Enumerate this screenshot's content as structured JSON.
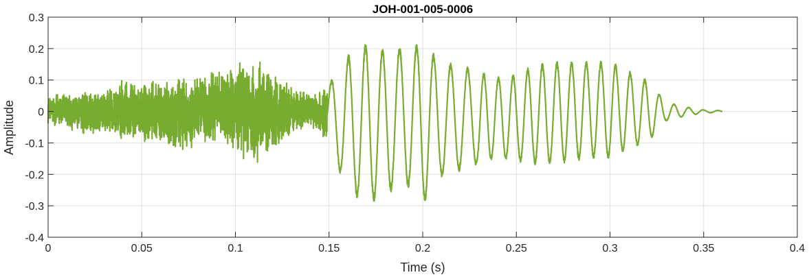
{
  "chart_data": {
    "type": "line",
    "title": "JOH-001-005-0006",
    "xlabel": "Time (s)",
    "ylabel": "Amplitude",
    "xlim": [
      0,
      0.4
    ],
    "ylim": [
      -0.4,
      0.3
    ],
    "grid": true,
    "color": "#77AC30",
    "x_ticks": [
      0,
      0.05,
      0.1,
      0.15,
      0.2,
      0.25,
      0.3,
      0.35,
      0.4
    ],
    "x_tick_labels": [
      "0",
      "0.05",
      "0.1",
      "0.15",
      "0.2",
      "0.25",
      "0.3",
      "0.35",
      "0.4"
    ],
    "y_ticks": [
      -0.4,
      -0.3,
      -0.2,
      -0.1,
      0,
      0.1,
      0.2,
      0.3
    ],
    "y_tick_labels": [
      "-0.4",
      "-0.3",
      "-0.2",
      "-0.1",
      "0",
      "0.1",
      "0.2",
      "0.3"
    ],
    "series": [
      {
        "x": [
          0,
          0.01,
          0.02,
          0.03,
          0.04,
          0.05,
          0.06,
          0.07,
          0.08,
          0.09,
          0.1,
          0.11,
          0.12,
          0.13,
          0.14,
          0.15,
          0.16,
          0.17,
          0.18,
          0.19,
          0.2,
          0.21,
          0.22,
          0.23,
          0.24,
          0.25,
          0.26,
          0.27,
          0.28,
          0.29,
          0.3,
          0.31,
          0.32,
          0.33,
          0.34,
          0.35,
          0.36
        ],
        "upper": [
          0.05,
          0.06,
          0.07,
          0.07,
          0.1,
          0.09,
          0.11,
          0.12,
          0.12,
          0.14,
          0.16,
          0.18,
          0.14,
          0.08,
          0.06,
          0.09,
          0.18,
          0.22,
          0.2,
          0.21,
          0.22,
          0.16,
          0.15,
          0.13,
          0.11,
          0.12,
          0.15,
          0.16,
          0.16,
          0.16,
          0.16,
          0.13,
          0.1,
          0.03,
          0.015,
          0.005,
          0.003
        ],
        "lower": [
          -0.04,
          -0.06,
          -0.08,
          -0.07,
          -0.09,
          -0.1,
          -0.12,
          -0.13,
          -0.12,
          -0.1,
          -0.14,
          -0.18,
          -0.13,
          -0.07,
          -0.05,
          -0.12,
          -0.25,
          -0.3,
          -0.27,
          -0.23,
          -0.3,
          -0.21,
          -0.19,
          -0.17,
          -0.15,
          -0.16,
          -0.17,
          -0.17,
          -0.16,
          -0.15,
          -0.15,
          -0.12,
          -0.1,
          -0.03,
          -0.015,
          -0.005,
          -0.003
        ]
      }
    ]
  }
}
